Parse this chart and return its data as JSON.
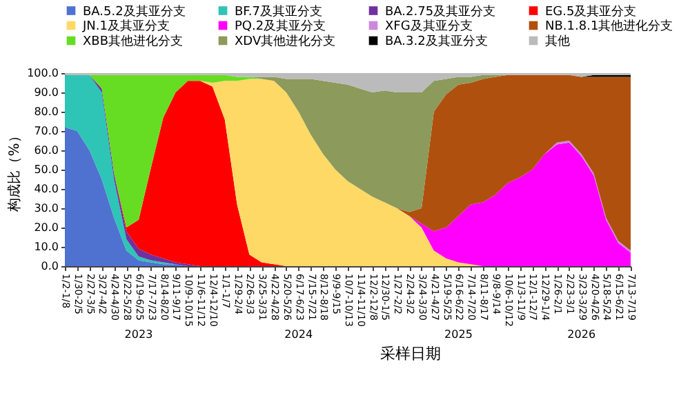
{
  "chart_data": {
    "type": "area",
    "stacked": true,
    "xlabel": "采样日期",
    "ylabel": "构成比（%）",
    "legend": "top",
    "grid": false,
    "categories": [
      "1/2-1/8",
      "1/30-2/5",
      "2/27-3/5",
      "3/27-4/2",
      "4/24-4/30",
      "5/22-5/28",
      "6/19-6/25",
      "7/17-7/23",
      "8/14-8/20",
      "9/11-9/17",
      "10/9-10/15",
      "11/6-11/12",
      "12/4-12/10",
      "1/1-1/7",
      "1/29-2/4",
      "2/26-3/3",
      "3/25-3/31",
      "4/22-4/28",
      "5/20-5/26",
      "6/17-6/23",
      "7/15-7/21",
      "8/12-8/18",
      "9/9-9/15",
      "10/7-10/13",
      "11/4-11/10",
      "12/2-12/8",
      "12/30-1/5",
      "1/27-2/2",
      "2/24-3/2",
      "3/24-3/30",
      "4/21-4/27",
      "5/19-5/25",
      "6/16-6/22",
      "7/14-7/20",
      "8/11-8/17",
      "9/8-9/14",
      "10/6-10/12",
      "11/3-11/9",
      "12/1-12/7",
      "12/29-1/4",
      "1/26-2/1",
      "2/23-3/1",
      "3/23-3/29",
      "4/20-4/26",
      "5/18-5/24",
      "6/15-6/21",
      "7/13-7/19"
    ],
    "ylim": [
      0,
      100
    ],
    "yticks": [
      {
        "value": 0,
        "label": "0.0"
      },
      {
        "value": 10,
        "label": "10.0"
      },
      {
        "value": 20,
        "label": "20.0"
      },
      {
        "value": 30,
        "label": "30.0"
      },
      {
        "value": 40,
        "label": "40.0"
      },
      {
        "value": 50,
        "label": "50.0"
      },
      {
        "value": 60,
        "label": "60.0"
      },
      {
        "value": 70,
        "label": "70.0"
      },
      {
        "value": 80,
        "label": "80.0"
      },
      {
        "value": 90,
        "label": "90.0"
      },
      {
        "value": 100,
        "label": "100.0"
      }
    ],
    "annotations": [
      "2023",
      "2024",
      "2025",
      "2026"
    ],
    "series": [
      {
        "name": "BA.5.2及其亚分支",
        "color": "#4f72d0",
        "values": [
          72,
          70,
          60,
          45,
          25,
          8,
          3,
          2,
          1,
          1,
          0,
          null,
          null,
          null,
          null,
          null,
          null,
          null,
          null,
          null,
          null,
          null,
          null,
          null,
          null,
          null,
          null,
          null,
          null,
          null,
          null,
          null,
          null,
          null,
          null,
          null,
          null,
          null,
          null,
          null,
          null,
          null,
          null,
          null,
          null,
          null,
          null
        ]
      },
      {
        "name": "BF.7及其亚分支",
        "color": "#2ec4b6",
        "values": [
          27,
          29,
          39,
          45,
          20,
          6,
          2,
          1,
          1,
          0,
          null,
          null,
          null,
          null,
          null,
          null,
          null,
          null,
          null,
          null,
          null,
          null,
          null,
          null,
          null,
          null,
          null,
          null,
          null,
          null,
          null,
          null,
          null,
          null,
          null,
          null,
          null,
          null,
          null,
          null,
          null,
          null,
          null,
          null,
          null,
          null,
          null
        ]
      },
      {
        "name": "BA.2.75及其亚分支",
        "color": "#7030a0",
        "values": [
          null,
          null,
          0,
          2,
          3,
          4,
          4,
          3,
          2,
          1,
          1,
          0,
          null,
          null,
          null,
          null,
          null,
          null,
          null,
          null,
          null,
          null,
          null,
          null,
          null,
          null,
          null,
          null,
          null,
          null,
          null,
          null,
          null,
          null,
          null,
          null,
          null,
          null,
          null,
          null,
          null,
          null,
          null,
          null,
          null,
          null,
          null
        ]
      },
      {
        "name": "EG.5及其亚分支",
        "color": "#ff0000",
        "values": [
          null,
          null,
          null,
          null,
          0,
          2,
          15,
          45,
          73,
          88,
          95,
          96,
          93,
          76,
          32,
          6,
          2,
          1,
          0,
          null,
          null,
          null,
          null,
          null,
          null,
          null,
          null,
          null,
          null,
          null,
          null,
          null,
          null,
          null,
          null,
          null,
          null,
          null,
          null,
          null,
          null,
          null,
          null,
          null,
          null,
          null,
          null
        ]
      },
      {
        "name": "JN.1及其亚分支",
        "color": "#ffd966",
        "values": [
          null,
          null,
          null,
          null,
          null,
          null,
          null,
          null,
          null,
          null,
          null,
          0,
          2,
          20,
          64,
          91,
          95,
          95,
          90,
          80,
          68,
          58,
          50,
          44,
          40,
          36,
          33,
          30,
          26,
          20,
          8,
          4,
          2,
          1,
          0,
          null,
          null,
          null,
          null,
          null,
          null,
          null,
          null,
          null,
          null,
          null,
          null
        ]
      },
      {
        "name": "PQ.2及其亚分支",
        "color": "#ff00ff",
        "values": [
          null,
          null,
          null,
          null,
          null,
          null,
          null,
          null,
          null,
          null,
          null,
          null,
          null,
          null,
          null,
          null,
          null,
          null,
          null,
          null,
          null,
          null,
          null,
          null,
          null,
          null,
          null,
          null,
          0,
          2,
          10,
          16,
          24,
          31,
          33,
          37,
          43,
          46,
          50,
          58,
          63,
          64,
          57,
          47,
          24,
          12,
          7
        ]
      },
      {
        "name": "XFG及其亚分支",
        "color": "#cc88dd",
        "values": [
          null,
          null,
          null,
          null,
          null,
          null,
          null,
          null,
          null,
          null,
          null,
          null,
          null,
          null,
          null,
          null,
          null,
          null,
          null,
          null,
          null,
          null,
          null,
          null,
          null,
          null,
          null,
          null,
          null,
          null,
          null,
          null,
          null,
          null,
          null,
          null,
          null,
          null,
          null,
          0,
          1,
          1,
          1,
          1,
          1,
          1,
          1
        ]
      },
      {
        "name": "NB.1.8.1其他进化分支",
        "color": "#b0500f",
        "values": [
          null,
          null,
          null,
          null,
          null,
          null,
          null,
          null,
          null,
          null,
          null,
          null,
          null,
          null,
          null,
          null,
          null,
          null,
          null,
          null,
          null,
          null,
          null,
          null,
          null,
          null,
          null,
          0,
          2,
          8,
          62,
          69,
          68,
          63,
          64,
          61,
          56,
          53,
          49,
          41,
          35,
          34,
          40,
          50,
          73,
          85,
          90
        ]
      },
      {
        "name": "XBB其他进化分支",
        "color": "#66dd22",
        "values": [
          null,
          null,
          0,
          7,
          51,
          79,
          75,
          48,
          22,
          9,
          3,
          3,
          4,
          3,
          2,
          1,
          0,
          null,
          null,
          null,
          null,
          null,
          null,
          null,
          null,
          null,
          null,
          null,
          null,
          null,
          null,
          null,
          null,
          null,
          null,
          null,
          null,
          null,
          null,
          null,
          null,
          null,
          null,
          null,
          null,
          null,
          null
        ]
      },
      {
        "name": "XDV其他进化分支",
        "color": "#8c9a5b",
        "values": [
          null,
          null,
          null,
          null,
          null,
          null,
          null,
          null,
          null,
          null,
          null,
          null,
          null,
          null,
          null,
          0,
          1,
          2,
          7,
          17,
          29,
          38,
          45,
          50,
          52,
          54,
          58,
          60,
          62,
          60,
          16,
          8,
          4,
          3,
          2,
          1,
          0,
          null,
          null,
          null,
          null,
          null,
          null,
          null,
          null,
          null,
          null
        ]
      },
      {
        "name": "BA.3.2及其亚分支",
        "color": "#000000",
        "values": [
          null,
          null,
          null,
          null,
          null,
          null,
          null,
          null,
          null,
          null,
          null,
          null,
          null,
          null,
          null,
          null,
          null,
          null,
          null,
          null,
          null,
          null,
          null,
          null,
          null,
          null,
          null,
          null,
          null,
          null,
          null,
          null,
          null,
          null,
          null,
          null,
          null,
          null,
          null,
          null,
          null,
          null,
          0,
          1,
          1,
          1,
          1
        ]
      },
      {
        "name": "其他",
        "color": "#bbbbbb",
        "values": [
          1,
          1,
          1,
          1,
          1,
          1,
          1,
          1,
          1,
          1,
          1,
          1,
          1,
          1,
          2,
          2,
          2,
          2,
          3,
          3,
          3,
          4,
          5,
          6,
          8,
          10,
          9,
          10,
          10,
          10,
          4,
          3,
          2,
          2,
          1,
          1,
          1,
          1,
          1,
          1,
          1,
          1,
          2,
          1,
          1,
          1,
          1
        ]
      }
    ]
  }
}
